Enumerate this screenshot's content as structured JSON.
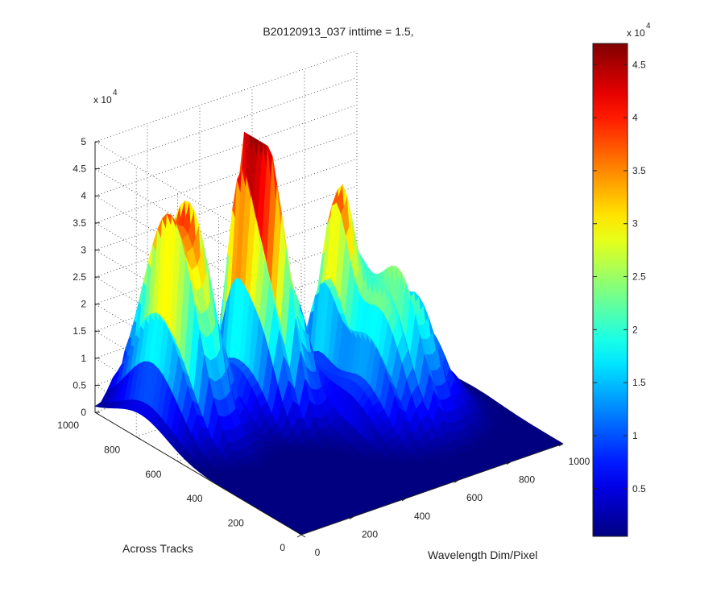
{
  "chart_data": {
    "type": "surface3d",
    "title": "B20120913_037 inttime = 1.5,",
    "xlabel": "Wavelength Dim/Pixel",
    "ylabel": "Across Tracks",
    "zlabel": "",
    "x_ticks": [
      "0",
      "200",
      "400",
      "600",
      "800",
      "1000"
    ],
    "y_ticks": [
      "0",
      "200",
      "400",
      "600",
      "800",
      "1000"
    ],
    "z_ticks": [
      "0",
      "0.5",
      "1",
      "1.5",
      "2",
      "2.5",
      "3",
      "3.5",
      "4",
      "4.5",
      "5"
    ],
    "z_multiplier": "x 10",
    "z_exponent": "4",
    "xlim": [
      0,
      1000
    ],
    "ylim": [
      0,
      1000
    ],
    "zlim": [
      0,
      50000
    ],
    "grid": true,
    "colormap": "jet",
    "colorbar": {
      "ticks": [
        "0.5",
        "1",
        "1.5",
        "2",
        "2.5",
        "3",
        "3.5",
        "4",
        "4.5"
      ],
      "tick_values": [
        5000,
        10000,
        15000,
        20000,
        25000,
        30000,
        35000,
        40000,
        45000
      ],
      "range": [
        500,
        47000
      ],
      "multiplier": "x 10",
      "exponent": "4"
    },
    "peaks": [
      {
        "x": 150,
        "y": 780,
        "z": 46000,
        "sx": 70,
        "sy": 130
      },
      {
        "x": 400,
        "y": 770,
        "z": 49000,
        "sx": 40,
        "sy": 60
      },
      {
        "x": 410,
        "y": 650,
        "z": 40000,
        "sx": 60,
        "sy": 90
      },
      {
        "x": 650,
        "y": 650,
        "z": 37000,
        "sx": 50,
        "sy": 70
      },
      {
        "x": 700,
        "y": 430,
        "z": 28000,
        "sx": 110,
        "sy": 120
      }
    ]
  }
}
